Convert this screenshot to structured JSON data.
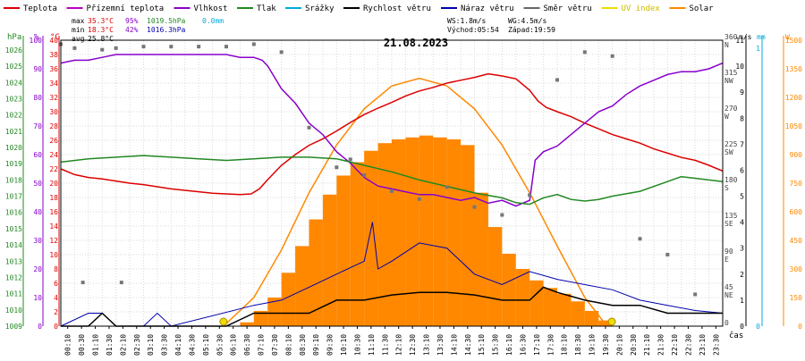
{
  "chart_data": {
    "type": "line",
    "date_title": "21.08.2023",
    "x_unit_label": "čas",
    "x_ticks": [
      "00:10",
      "00:30",
      "01:10",
      "01:30",
      "02:10",
      "02:30",
      "03:10",
      "03:30",
      "04:10",
      "04:30",
      "05:10",
      "05:30",
      "06:10",
      "06:30",
      "07:10",
      "07:30",
      "08:10",
      "08:30",
      "09:10",
      "09:30",
      "10:10",
      "10:30",
      "11:10",
      "11:30",
      "12:10",
      "12:30",
      "13:10",
      "13:30",
      "14:10",
      "14:30",
      "15:10",
      "15:30",
      "16:10",
      "16:30",
      "17:10",
      "17:30",
      "18:10",
      "18:30",
      "19:10",
      "19:30",
      "20:10",
      "20:30",
      "21:10",
      "21:30",
      "22:10",
      "22:30",
      "23:10",
      "23:30"
    ],
    "legend": [
      {
        "label": "Teplota",
        "color": "#dd0000"
      },
      {
        "label": "Přízemní teplota",
        "color": "#bb00bb"
      },
      {
        "label": "Vlhkost",
        "color": "#8800cc"
      },
      {
        "label": "Tlak",
        "color": "#228822"
      },
      {
        "label": "Srážky",
        "color": "#00aadd"
      },
      {
        "label": "Rychlost větru",
        "color": "#000000"
      },
      {
        "label": "Náraz větru",
        "color": "#0000aa"
      },
      {
        "label": "Směr větru",
        "color": "#666666"
      },
      {
        "label": "UV index",
        "color": "#eedd00"
      },
      {
        "label": "Solar",
        "color": "#ff8800"
      }
    ],
    "stats": {
      "max_label": "max",
      "max_temp": "35.3°C",
      "max_hum": "95%",
      "max_press": "1019.5hPa",
      "max_rain": "0.0mm",
      "min_label": "min",
      "min_temp": "18.3°C",
      "min_hum": "42%",
      "min_press": "1016.3hPa",
      "avg_label": "avg",
      "avg_temp": "25.8°C",
      "ws": "WS:1.8m/s",
      "wg": "WG:4.5m/s",
      "sunrise": "Východ:05:54",
      "sunset": "Západ:19:59"
    },
    "left_axes": [
      {
        "unit": "hPa",
        "color": "#228822",
        "ticks": [
          "1009",
          "1010",
          "1011",
          "1012",
          "1013",
          "1014",
          "1015",
          "1016",
          "1017",
          "1018",
          "1019",
          "1020",
          "1021",
          "1022",
          "1023",
          "1024",
          "1025",
          "1026"
        ]
      },
      {
        "unit": "%",
        "color": "#8800cc",
        "ticks": [
          "0",
          "10",
          "20",
          "30",
          "40",
          "50",
          "60",
          "70",
          "80",
          "90",
          "100"
        ]
      },
      {
        "unit": "°C",
        "color": "#dd0000",
        "ticks": [
          "0",
          "2",
          "4",
          "6",
          "8",
          "10",
          "12",
          "14",
          "16",
          "18",
          "20",
          "22",
          "24",
          "26",
          "28",
          "30",
          "32",
          "34",
          "36",
          "38",
          "40"
        ]
      }
    ],
    "right_axes": [
      {
        "unit": "",
        "color": "#444444",
        "ticks": [
          "0",
          "45",
          "90",
          "135",
          "180",
          "225",
          "270",
          "315",
          "360"
        ],
        "labels": [
          "",
          "NE",
          "E",
          "SE",
          "S",
          "SW",
          "W",
          "NW",
          "N"
        ]
      },
      {
        "unit": "m/s",
        "color": "#000000",
        "ticks": [
          "0",
          "1",
          "2",
          "3",
          "4",
          "5",
          "6",
          "7",
          "8",
          "9",
          "10",
          "11"
        ]
      },
      {
        "unit": "mm",
        "color": "#00aadd",
        "ticks": [
          "0",
          "1"
        ]
      },
      {
        "unit": "W",
        "color": "#ff8800",
        "ticks": [
          "0",
          "150",
          "300",
          "450",
          "600",
          "750",
          "900",
          "1050",
          "1200",
          "1350",
          "1500"
        ]
      }
    ],
    "axes_ranges": {
      "hours": [
        0,
        24
      ],
      "temp_c": [
        0,
        40
      ],
      "humidity_pct": [
        0,
        100
      ],
      "pressure_hpa": [
        1009,
        1026.6
      ],
      "wind_ms": [
        0,
        11
      ],
      "direction_deg": [
        0,
        360
      ],
      "solar_w": [
        0,
        1500
      ]
    },
    "series": [
      {
        "name": "Teplota",
        "unit": "°C",
        "points": [
          [
            0,
            22
          ],
          [
            0.5,
            21.2
          ],
          [
            1,
            20.8
          ],
          [
            1.5,
            20.6
          ],
          [
            2,
            20.3
          ],
          [
            2.5,
            20
          ],
          [
            3,
            19.8
          ],
          [
            3.5,
            19.5
          ],
          [
            4,
            19.2
          ],
          [
            4.5,
            19
          ],
          [
            5,
            18.8
          ],
          [
            5.5,
            18.6
          ],
          [
            6,
            18.5
          ],
          [
            6.5,
            18.4
          ],
          [
            6.9,
            18.5
          ],
          [
            7.2,
            19.2
          ],
          [
            7.5,
            20.5
          ],
          [
            8,
            22.5
          ],
          [
            8.5,
            24
          ],
          [
            9,
            25.3
          ],
          [
            9.5,
            26.2
          ],
          [
            10,
            27.3
          ],
          [
            10.5,
            28.5
          ],
          [
            11,
            29.6
          ],
          [
            11.5,
            30.5
          ],
          [
            12,
            31.3
          ],
          [
            12.5,
            32.2
          ],
          [
            13,
            32.9
          ],
          [
            13.5,
            33.4
          ],
          [
            14,
            34
          ],
          [
            14.5,
            34.4
          ],
          [
            15,
            34.8
          ],
          [
            15.5,
            35.3
          ],
          [
            16,
            35
          ],
          [
            16.5,
            34.6
          ],
          [
            17,
            33
          ],
          [
            17.3,
            31.5
          ],
          [
            17.6,
            30.6
          ],
          [
            18,
            30
          ],
          [
            18.5,
            29.3
          ],
          [
            19,
            28.4
          ],
          [
            19.5,
            27.6
          ],
          [
            20,
            26.8
          ],
          [
            20.5,
            26.2
          ],
          [
            21,
            25.6
          ],
          [
            21.5,
            24.8
          ],
          [
            22,
            24.2
          ],
          [
            22.5,
            23.6
          ],
          [
            23,
            23.2
          ],
          [
            23.5,
            22.5
          ],
          [
            24,
            21.7
          ]
        ]
      },
      {
        "name": "Vlhkost",
        "unit": "%",
        "points": [
          [
            0,
            92
          ],
          [
            0.5,
            93
          ],
          [
            1,
            93
          ],
          [
            1.5,
            94
          ],
          [
            2,
            95
          ],
          [
            2.5,
            95
          ],
          [
            3,
            95
          ],
          [
            4,
            95
          ],
          [
            5,
            95
          ],
          [
            6,
            95
          ],
          [
            6.5,
            94
          ],
          [
            7,
            94
          ],
          [
            7.3,
            93
          ],
          [
            7.5,
            91
          ],
          [
            8,
            83
          ],
          [
            8.5,
            78
          ],
          [
            9,
            71
          ],
          [
            9.5,
            67
          ],
          [
            10,
            61
          ],
          [
            10.5,
            57
          ],
          [
            11,
            52
          ],
          [
            11.5,
            49
          ],
          [
            12,
            48
          ],
          [
            12.5,
            47
          ],
          [
            13,
            46
          ],
          [
            13.5,
            46
          ],
          [
            14,
            45
          ],
          [
            14.5,
            44
          ],
          [
            15,
            45
          ],
          [
            15.5,
            43
          ],
          [
            16,
            44
          ],
          [
            16.5,
            42
          ],
          [
            17,
            44
          ],
          [
            17.2,
            58
          ],
          [
            17.5,
            61
          ],
          [
            18,
            63
          ],
          [
            18.5,
            67
          ],
          [
            19,
            71
          ],
          [
            19.5,
            75
          ],
          [
            20,
            77
          ],
          [
            20.5,
            81
          ],
          [
            21,
            84
          ],
          [
            21.5,
            86
          ],
          [
            22,
            88
          ],
          [
            22.5,
            89
          ],
          [
            23,
            89
          ],
          [
            23.5,
            90
          ],
          [
            24,
            92
          ]
        ]
      },
      {
        "name": "Tlak",
        "unit": "hPa",
        "points": [
          [
            0,
            1019.1
          ],
          [
            1,
            1019.3
          ],
          [
            2,
            1019.4
          ],
          [
            3,
            1019.5
          ],
          [
            4,
            1019.4
          ],
          [
            5,
            1019.3
          ],
          [
            6,
            1019.2
          ],
          [
            7,
            1019.3
          ],
          [
            8,
            1019.4
          ],
          [
            9,
            1019.4
          ],
          [
            10,
            1019.3
          ],
          [
            11,
            1018.9
          ],
          [
            12,
            1018.5
          ],
          [
            13,
            1018.0
          ],
          [
            14,
            1017.6
          ],
          [
            15,
            1017.2
          ],
          [
            16,
            1016.9
          ],
          [
            16.5,
            1016.6
          ],
          [
            17,
            1016.5
          ],
          [
            17.5,
            1016.9
          ],
          [
            18,
            1017.1
          ],
          [
            18.5,
            1016.8
          ],
          [
            19,
            1016.7
          ],
          [
            19.5,
            1016.8
          ],
          [
            20,
            1017.0
          ],
          [
            21,
            1017.3
          ],
          [
            22,
            1017.9
          ],
          [
            22.5,
            1018.2
          ],
          [
            23,
            1018.1
          ],
          [
            24,
            1017.9
          ]
        ]
      },
      {
        "name": "Solar",
        "unit": "W/m2",
        "points": [
          [
            5.9,
            0
          ],
          [
            7,
            150
          ],
          [
            8,
            400
          ],
          [
            9,
            700
          ],
          [
            10,
            950
          ],
          [
            11,
            1140
          ],
          [
            12,
            1260
          ],
          [
            13,
            1300
          ],
          [
            14,
            1260
          ],
          [
            15,
            1140
          ],
          [
            16,
            950
          ],
          [
            17,
            700
          ],
          [
            18,
            420
          ],
          [
            19,
            150
          ],
          [
            19.8,
            0
          ]
        ]
      },
      {
        "name": "Rychlost větru",
        "unit": "m/s",
        "points": [
          [
            0,
            0
          ],
          [
            1,
            0
          ],
          [
            1.5,
            0.5
          ],
          [
            2,
            0
          ],
          [
            4,
            0
          ],
          [
            6,
            0
          ],
          [
            7,
            0.5
          ],
          [
            8,
            0.5
          ],
          [
            9,
            0.5
          ],
          [
            10,
            1
          ],
          [
            11,
            1
          ],
          [
            12,
            1.2
          ],
          [
            13,
            1.3
          ],
          [
            14,
            1.3
          ],
          [
            15,
            1.2
          ],
          [
            16,
            1
          ],
          [
            17,
            1
          ],
          [
            17.5,
            1.5
          ],
          [
            18,
            1.3
          ],
          [
            19,
            1
          ],
          [
            20,
            0.8
          ],
          [
            21,
            0.8
          ],
          [
            22,
            0.5
          ],
          [
            23,
            0.5
          ],
          [
            24,
            0.5
          ]
        ]
      },
      {
        "name": "Náraz větru",
        "unit": "m/s",
        "points": [
          [
            0,
            0
          ],
          [
            1,
            0.5
          ],
          [
            1.5,
            0.5
          ],
          [
            2,
            0
          ],
          [
            3,
            0
          ],
          [
            3.5,
            0.5
          ],
          [
            4,
            0
          ],
          [
            7,
            0.8
          ],
          [
            8,
            1
          ],
          [
            9,
            1.5
          ],
          [
            10,
            2
          ],
          [
            11,
            2.5
          ],
          [
            11.3,
            4
          ],
          [
            11.5,
            2.2
          ],
          [
            12,
            2.5
          ],
          [
            13,
            3.2
          ],
          [
            14,
            3
          ],
          [
            14.5,
            2.5
          ],
          [
            15,
            2
          ],
          [
            16,
            1.6
          ],
          [
            17,
            2.1
          ],
          [
            18,
            1.8
          ],
          [
            19,
            1.6
          ],
          [
            20,
            1.4
          ],
          [
            21,
            1
          ],
          [
            22,
            0.8
          ],
          [
            23,
            0.6
          ],
          [
            24,
            0.5
          ]
        ]
      },
      {
        "name": "Směr větru",
        "unit": "deg",
        "points": [
          [
            0,
            355
          ],
          [
            0.5,
            350
          ],
          [
            1.5,
            348
          ],
          [
            2,
            350
          ],
          [
            3,
            352
          ],
          [
            4,
            352
          ],
          [
            5,
            352
          ],
          [
            6,
            352
          ],
          [
            7,
            355
          ],
          [
            8,
            345
          ],
          [
            9,
            250
          ],
          [
            10,
            200
          ],
          [
            10.5,
            210
          ],
          [
            11,
            190
          ],
          [
            12,
            170
          ],
          [
            13,
            160
          ],
          [
            14,
            175
          ],
          [
            15,
            150
          ],
          [
            16,
            140
          ],
          [
            17,
            165
          ],
          [
            18,
            310
          ],
          [
            19,
            345
          ],
          [
            20,
            340
          ],
          [
            21,
            110
          ],
          [
            22,
            90
          ],
          [
            23,
            40
          ],
          [
            0.8,
            55
          ],
          [
            2.2,
            55
          ]
        ]
      }
    ],
    "solar_bars": [
      [
        6.5,
        20
      ],
      [
        7,
        80
      ],
      [
        7.5,
        150
      ],
      [
        8,
        280
      ],
      [
        8.5,
        420
      ],
      [
        9,
        560
      ],
      [
        9.5,
        690
      ],
      [
        10,
        790
      ],
      [
        10.5,
        860
      ],
      [
        11,
        920
      ],
      [
        11.5,
        960
      ],
      [
        12,
        980
      ],
      [
        12.5,
        990
      ],
      [
        13,
        1000
      ],
      [
        13.5,
        990
      ],
      [
        14,
        980
      ],
      [
        14.5,
        950
      ],
      [
        15,
        700
      ],
      [
        15.5,
        520
      ],
      [
        16,
        380
      ],
      [
        16.5,
        300
      ],
      [
        17,
        240
      ],
      [
        17.5,
        200
      ],
      [
        18,
        170
      ],
      [
        18.5,
        130
      ],
      [
        19,
        80
      ],
      [
        19.5,
        30
      ]
    ],
    "grid": true,
    "legend_position": "top"
  }
}
